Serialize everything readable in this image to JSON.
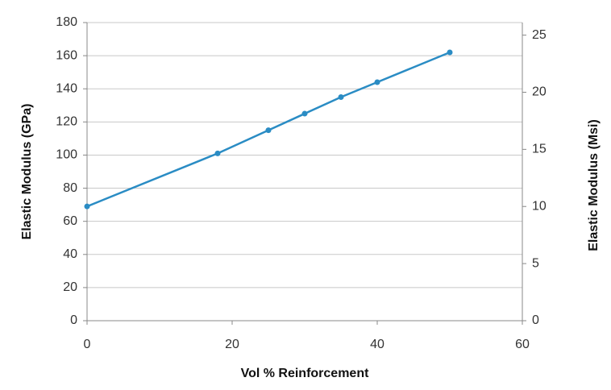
{
  "chart_data": {
    "type": "line",
    "x_label": "Vol % Reinforcement",
    "y_label": "Elastic Modulus (GPa)",
    "y2_label": "Elastic Modulus (Msi)",
    "x": [
      0,
      18,
      25,
      30,
      35,
      40,
      50
    ],
    "series": [
      {
        "color": "#2a8cc4",
        "values": [
          69,
          101,
          115,
          125,
          135,
          144,
          162
        ]
      }
    ],
    "xlim": [
      0,
      60
    ],
    "xticks": [
      0,
      20,
      40,
      60
    ],
    "ylim": [
      0,
      180
    ],
    "yticks": [
      0,
      20,
      40,
      60,
      80,
      100,
      120,
      140,
      160,
      180
    ],
    "y2lim": [
      0,
      26.1
    ],
    "y2ticks": [
      0,
      5,
      10,
      15,
      20,
      25
    ],
    "grid": true
  }
}
